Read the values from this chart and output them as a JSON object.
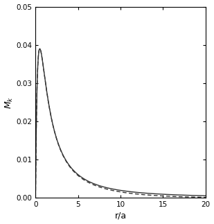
{
  "xlim": [
    0,
    20
  ],
  "ylim": [
    0,
    0.05
  ],
  "xticks": [
    0,
    5,
    10,
    15,
    20
  ],
  "yticks": [
    0,
    0.01,
    0.02,
    0.03,
    0.04,
    0.05
  ],
  "xlabel": "r/a",
  "ylabel": "$M_k$",
  "solid_color": "#333333",
  "dashed_color": "#333333",
  "background_color": "#ffffff",
  "line_width": 1.0,
  "figsize": [
    3.09,
    3.23
  ],
  "dpi": 100,
  "a_hernquist": 1.0,
  "r_trunc": 20.0,
  "target_peak": 0.039
}
